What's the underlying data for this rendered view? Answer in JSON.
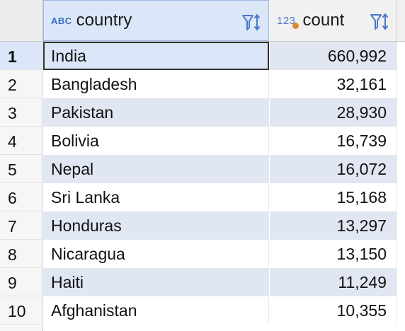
{
  "columns": [
    {
      "name": "country",
      "type_icon": "ABC"
    },
    {
      "name": "count",
      "type_icon": "123"
    }
  ],
  "rows": [
    {
      "num": "1",
      "country": "India",
      "count": "660,992"
    },
    {
      "num": "2",
      "country": "Bangladesh",
      "count": "32,161"
    },
    {
      "num": "3",
      "country": "Pakistan",
      "count": "28,930"
    },
    {
      "num": "4",
      "country": "Bolivia",
      "count": "16,739"
    },
    {
      "num": "5",
      "country": "Nepal",
      "count": "16,072"
    },
    {
      "num": "6",
      "country": "Sri Lanka",
      "count": "15,168"
    },
    {
      "num": "7",
      "country": "Honduras",
      "count": "13,297"
    },
    {
      "num": "8",
      "country": "Nicaragua",
      "count": "13,150"
    },
    {
      "num": "9",
      "country": "Haiti",
      "count": "11,249"
    },
    {
      "num": "10",
      "country": "Afghanistan",
      "count": "10,355"
    }
  ],
  "selected_row": 0,
  "colors": {
    "header_selected": "#dbe7f8",
    "row_alt": "#e0e7f2",
    "accent": "#3a6fc4",
    "numeric_dot": "#e2863a"
  }
}
